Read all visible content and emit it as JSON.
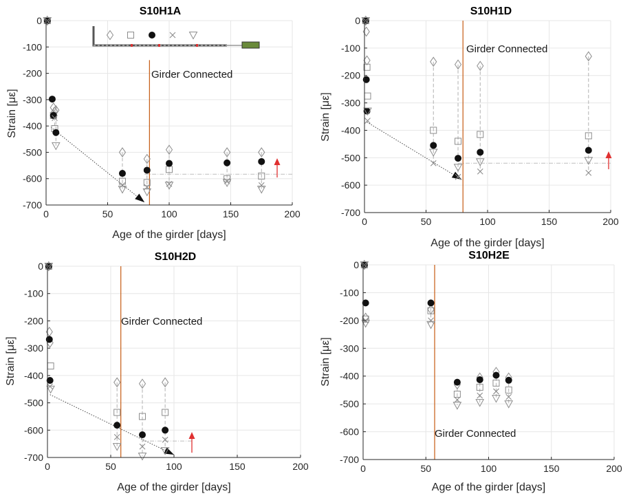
{
  "chart_data": [
    {
      "type": "scatter",
      "title": "S10H1A",
      "xlabel": "Age of the girder [days]",
      "ylabel": "Strain [με]",
      "xlim": [
        0,
        200
      ],
      "ylim": [
        -700,
        0
      ],
      "xticks": [
        "0",
        "50",
        "100",
        "150",
        "200"
      ],
      "yticks": [
        "0",
        "-100",
        "-200",
        "-300",
        "-400",
        "-500",
        "-600",
        "-700"
      ],
      "grid": true,
      "annotation": "Girder Connected",
      "girder_connected_day": 84,
      "legend_markers": [
        "diamond",
        "square",
        "filled-circle",
        "x",
        "triangle-down"
      ],
      "series": [
        {
          "marker": "diamond",
          "x": [
            1,
            6,
            7,
            8,
            62,
            82,
            100,
            147,
            175
          ],
          "y": [
            0,
            -330,
            -345,
            -340,
            -500,
            -525,
            -490,
            -500,
            -500
          ]
        },
        {
          "marker": "square",
          "x": [
            1,
            6,
            7,
            62,
            82,
            100,
            147,
            175
          ],
          "y": [
            0,
            -360,
            -410,
            -610,
            -615,
            -565,
            -600,
            -590
          ]
        },
        {
          "marker": "filled-circle",
          "x": [
            1,
            5,
            6,
            8,
            62,
            82,
            100,
            147,
            175
          ],
          "y": [
            0,
            -298,
            -360,
            -425,
            -580,
            -568,
            -542,
            -540,
            -535
          ]
        },
        {
          "marker": "x",
          "x": [
            1,
            7,
            62,
            82,
            100,
            147,
            175
          ],
          "y": [
            0,
            -370,
            -625,
            -632,
            -620,
            -610,
            -625
          ]
        },
        {
          "marker": "triangle-down",
          "x": [
            1,
            8,
            62,
            82,
            100,
            147,
            175
          ],
          "y": [
            0,
            -475,
            -640,
            -650,
            -625,
            -615,
            -640
          ]
        }
      ],
      "trend": {
        "from": [
          4,
          -405
        ],
        "to": [
          80,
          -690
        ]
      },
      "plateau": {
        "y": -583,
        "from": 80,
        "to": 200
      }
    },
    {
      "type": "scatter",
      "title": "S10H1D",
      "xlabel": "Age of the girder [days]",
      "ylabel": "Strain [με]",
      "xlim": [
        0,
        200
      ],
      "ylim": [
        -700,
        0
      ],
      "xticks": [
        "0",
        "50",
        "100",
        "150",
        "200"
      ],
      "yticks": [
        "0",
        "-100",
        "-200",
        "-300",
        "-400",
        "-500",
        "-600",
        "-700"
      ],
      "grid": true,
      "annotation": "Girder Connected",
      "girder_connected_day": 80,
      "series": [
        {
          "marker": "diamond",
          "x": [
            1,
            1.5,
            2,
            56,
            76,
            94,
            182
          ],
          "y": [
            0,
            -40,
            -145,
            -150,
            -160,
            -165,
            -130
          ]
        },
        {
          "marker": "square",
          "x": [
            1,
            2,
            2.5,
            56,
            76,
            94,
            182
          ],
          "y": [
            0,
            -170,
            -275,
            -400,
            -440,
            -415,
            -420
          ]
        },
        {
          "marker": "filled-circle",
          "x": [
            1,
            1.5,
            2,
            56,
            76,
            94,
            182
          ],
          "y": [
            0,
            -215,
            -330,
            -455,
            -502,
            -480,
            -473
          ]
        },
        {
          "marker": "x",
          "x": [
            1,
            2.5,
            56,
            76,
            94,
            182
          ],
          "y": [
            0,
            -365,
            -520,
            -570,
            -550,
            -555
          ]
        },
        {
          "marker": "triangle-down",
          "x": [
            1,
            2.5,
            56,
            76,
            94,
            182
          ],
          "y": [
            0,
            -330,
            -480,
            -535,
            -515,
            -510
          ]
        }
      ],
      "trend": {
        "from": [
          2,
          -370
        ],
        "to": [
          79,
          -580
        ]
      },
      "plateau": {
        "y": -520,
        "from": 76,
        "to": 200
      }
    },
    {
      "type": "scatter",
      "title": "S10H2D",
      "xlabel": "Age of the girder [days]",
      "ylabel": "Strain [με]",
      "xlim": [
        0,
        200
      ],
      "ylim": [
        -700,
        0
      ],
      "xticks": [
        "0",
        "50",
        "100",
        "150",
        "200"
      ],
      "yticks": [
        "0",
        "-100",
        "-200",
        "-300",
        "-400",
        "-500",
        "-600",
        "-700"
      ],
      "grid": true,
      "annotation": "Girder Connected",
      "girder_connected_day": 58,
      "series": [
        {
          "marker": "diamond",
          "x": [
            1,
            1.5,
            2,
            55,
            75,
            93
          ],
          "y": [
            0,
            -240,
            -280,
            -425,
            -430,
            -425
          ]
        },
        {
          "marker": "square",
          "x": [
            1,
            2.5,
            55,
            75,
            93
          ],
          "y": [
            0,
            -365,
            -535,
            -550,
            -535
          ]
        },
        {
          "marker": "filled-circle",
          "x": [
            1,
            1.5,
            2,
            55,
            75,
            93
          ],
          "y": [
            0,
            -268,
            -418,
            -582,
            -617,
            -600
          ]
        },
        {
          "marker": "x",
          "x": [
            1,
            2,
            55,
            75,
            93
          ],
          "y": [
            0,
            -440,
            -625,
            -660,
            -635
          ]
        },
        {
          "marker": "triangle-down",
          "x": [
            1,
            2.5,
            55,
            75,
            93
          ],
          "y": [
            0,
            -450,
            -660,
            -695,
            -675
          ]
        }
      ],
      "trend": {
        "from": [
          2,
          -470
        ],
        "to": [
          100,
          -690
        ]
      },
      "plateau": {
        "y": -640,
        "from": 75,
        "to": 115
      }
    },
    {
      "type": "scatter",
      "title": "S10H2E",
      "xlabel": "Age of the girder [days]",
      "ylabel": "Strain [με]",
      "xlim": [
        0,
        200
      ],
      "ylim": [
        -700,
        0
      ],
      "xticks": [
        "0",
        "50",
        "100",
        "150",
        "200"
      ],
      "yticks": [
        "0",
        "-100",
        "-200",
        "-300",
        "-400",
        "-500",
        "-600",
        "-700"
      ],
      "grid": true,
      "annotation": "Girder Connected",
      "girder_connected_day": 57,
      "series": [
        {
          "marker": "diamond",
          "x": [
            1,
            2,
            54,
            75,
            93,
            106,
            116
          ],
          "y": [
            0,
            -190,
            -160,
            -430,
            -405,
            -385,
            -405
          ]
        },
        {
          "marker": "square",
          "x": [
            1,
            2,
            54,
            75,
            93,
            106,
            116
          ],
          "y": [
            0,
            -195,
            -165,
            -465,
            -440,
            -425,
            -450
          ]
        },
        {
          "marker": "filled-circle",
          "x": [
            1,
            2,
            54,
            75,
            93,
            106,
            116
          ],
          "y": [
            0,
            -137,
            -137,
            -422,
            -413,
            -397,
            -415
          ]
        },
        {
          "marker": "x",
          "x": [
            1,
            2,
            54,
            75,
            93,
            106,
            116
          ],
          "y": [
            0,
            -200,
            -200,
            -485,
            -470,
            -455,
            -475
          ]
        },
        {
          "marker": "triangle-down",
          "x": [
            1,
            2,
            54,
            75,
            93,
            106,
            116
          ],
          "y": [
            0,
            -210,
            -215,
            -505,
            -495,
            -480,
            -500
          ]
        }
      ]
    }
  ]
}
